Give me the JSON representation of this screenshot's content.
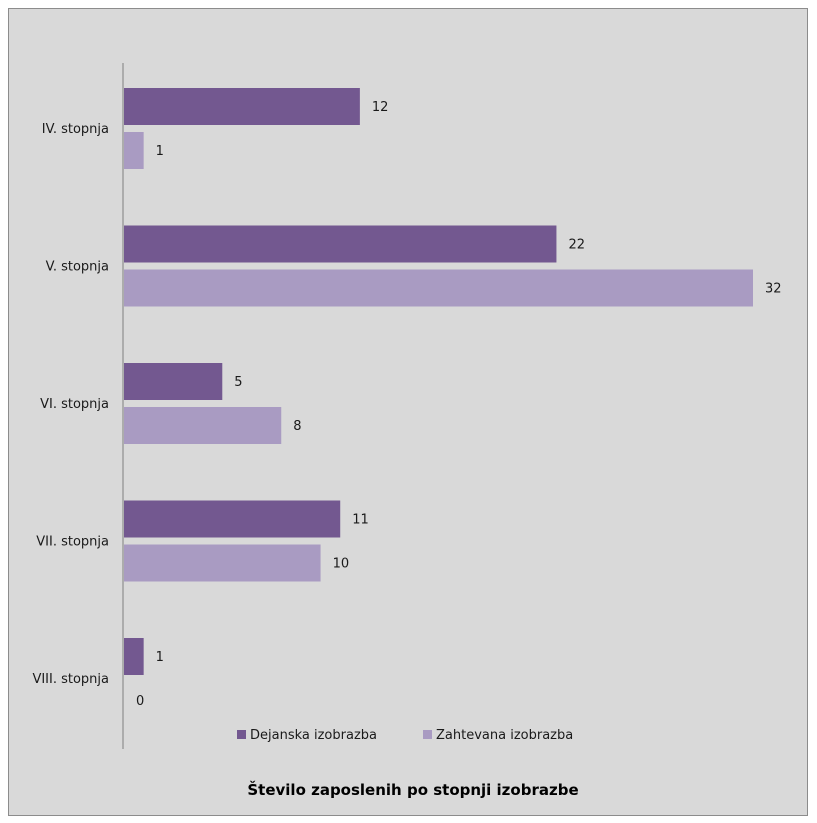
{
  "chart_data": {
    "type": "bar",
    "orientation": "horizontal",
    "title": "Število zaposlenih po stopnji izobrazbe",
    "categories": [
      "IV. stopnja",
      "V. stopnja",
      "VI. stopnja",
      "VII. stopnja",
      "VIII. stopnja"
    ],
    "series": [
      {
        "name": "Dejanska izobrazba",
        "values": [
          12,
          22,
          5,
          11,
          1
        ],
        "color": "#735890"
      },
      {
        "name": "Zahtevana izobrazba",
        "values": [
          1,
          32,
          8,
          10,
          0
        ],
        "color": "#a99bc2"
      }
    ],
    "xlim": [
      0,
      32
    ],
    "grid": false,
    "legend": "bottom",
    "data_labels": true
  },
  "colors": {
    "plot_background": "#d9d9d9",
    "axis_line": "#7f7f7f"
  }
}
